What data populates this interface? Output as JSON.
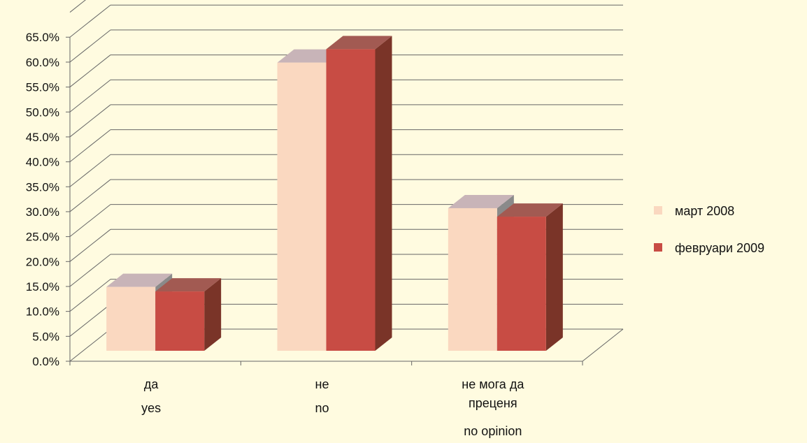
{
  "chart_data": {
    "type": "bar",
    "title": "",
    "xlabel": "",
    "ylabel": "",
    "ylim": [
      0,
      65
    ],
    "y_tick_labels": [
      "0.0%",
      "5.0%",
      "10.0%",
      "15.0%",
      "20.0%",
      "25.0%",
      "30.0%",
      "35.0%",
      "40.0%",
      "45.0%",
      "50.0%",
      "55.0%",
      "60.0%",
      "65.0%"
    ],
    "categories": [
      [
        "да",
        "yes"
      ],
      [
        "не",
        "no"
      ],
      [
        "не мога да",
        "преценя",
        "no opinion"
      ]
    ],
    "series": [
      {
        "name": "март 2008",
        "values": [
          12.8,
          57.8,
          28.6
        ],
        "color": "#fad8c0",
        "top_color": "#c8b4b8",
        "side_color": "#8a8a8a"
      },
      {
        "name": "февруари 2009",
        "values": [
          11.9,
          60.5,
          26.9
        ],
        "color": "#c84c44",
        "top_color": "#a25a52",
        "side_color": "#7a3428"
      }
    ],
    "grid": true,
    "legend_position": "right",
    "style": "3d-clustered-column"
  }
}
